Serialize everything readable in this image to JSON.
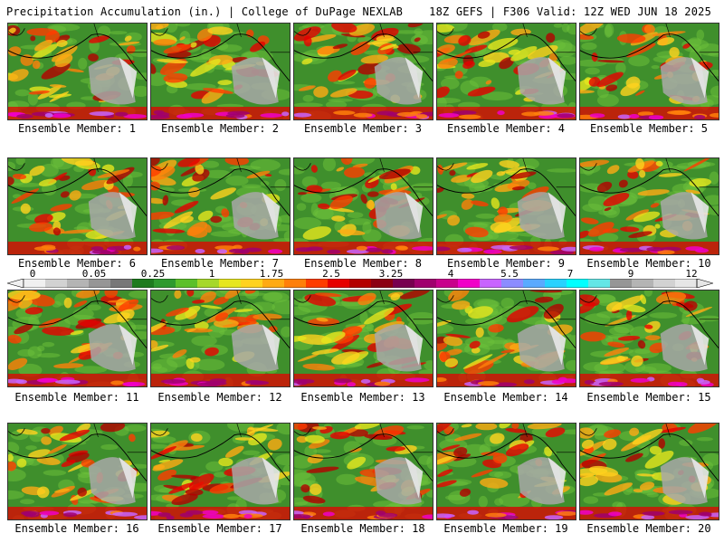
{
  "header": {
    "title": "Precipitation Accumulation (in.) | College of DuPage NEXLAB",
    "run_info": "18Z GEFS | F306 Valid: 12Z WED JUN 18 2025"
  },
  "panels": [
    {
      "label": "Ensemble Member: 1"
    },
    {
      "label": "Ensemble Member: 2"
    },
    {
      "label": "Ensemble Member: 3"
    },
    {
      "label": "Ensemble Member: 4"
    },
    {
      "label": "Ensemble Member: 5"
    },
    {
      "label": "Ensemble Member: 6"
    },
    {
      "label": "Ensemble Member: 7"
    },
    {
      "label": "Ensemble Member: 8"
    },
    {
      "label": "Ensemble Member: 9"
    },
    {
      "label": "Ensemble Member: 10"
    },
    {
      "label": "Ensemble Member: 11"
    },
    {
      "label": "Ensemble Member: 12"
    },
    {
      "label": "Ensemble Member: 13"
    },
    {
      "label": "Ensemble Member: 14"
    },
    {
      "label": "Ensemble Member: 15"
    },
    {
      "label": "Ensemble Member: 16"
    },
    {
      "label": "Ensemble Member: 17"
    },
    {
      "label": "Ensemble Member: 18"
    },
    {
      "label": "Ensemble Member: 19"
    },
    {
      "label": "Ensemble Member: 20"
    }
  ],
  "colorbar": {
    "tick_labels": [
      "0",
      "0.05",
      "0.25",
      "1",
      "1.75",
      "2.5",
      "3.25",
      "4",
      "5.5",
      "7",
      "9",
      "12"
    ],
    "colors": [
      "#f0f0f0",
      "#d2d2d2",
      "#b4b4b4",
      "#969696",
      "#787878",
      "#1e7b1e",
      "#2e9a2e",
      "#5cc02a",
      "#a6d82a",
      "#e6e61e",
      "#ffd21e",
      "#ffaa14",
      "#ff7f0a",
      "#ff3c00",
      "#e60000",
      "#b40000",
      "#8c0014",
      "#780050",
      "#a0006e",
      "#c8008c",
      "#f000c8",
      "#c864ff",
      "#8c8cff",
      "#5aaaff",
      "#28d2ff",
      "#00ffff",
      "#64e6e6",
      "#969696",
      "#b4b4b4",
      "#d2d2d2",
      "#e6e6e6"
    ]
  }
}
